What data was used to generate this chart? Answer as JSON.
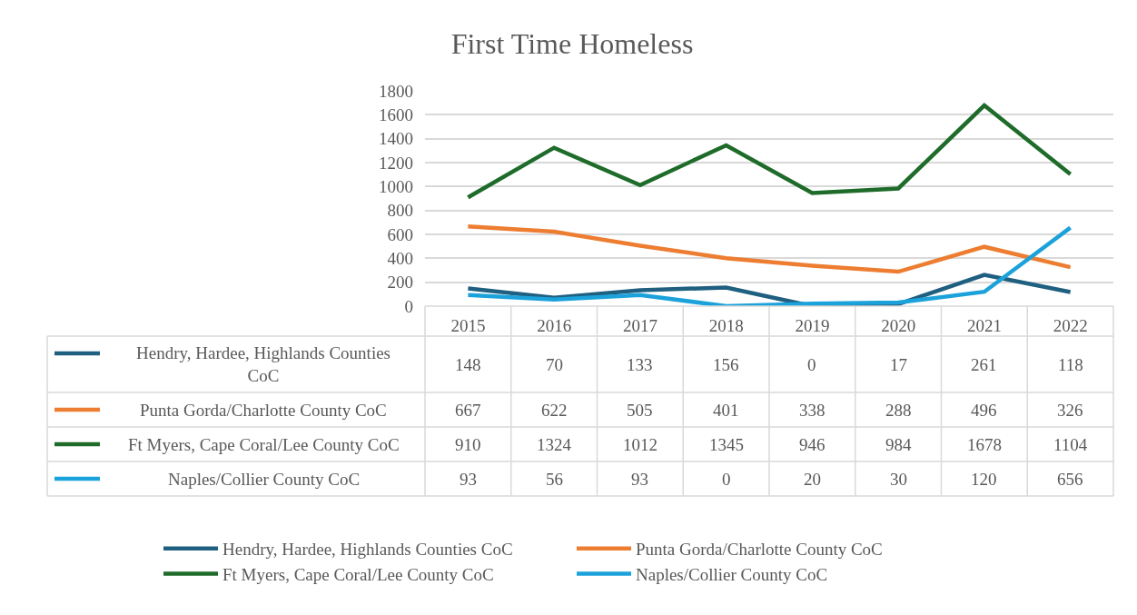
{
  "chart_data": {
    "type": "line",
    "title": "First Time Homeless",
    "categories": [
      "2015",
      "2016",
      "2017",
      "2018",
      "2019",
      "2020",
      "2021",
      "2022"
    ],
    "series": [
      {
        "name": "Hendry, Hardee, Highlands Counties CoC",
        "color": "#1f5f80",
        "values": [
          148,
          70,
          133,
          156,
          0,
          17,
          261,
          118
        ]
      },
      {
        "name": "Punta Gorda/Charlotte County CoC",
        "color": "#ed7d31",
        "values": [
          667,
          622,
          505,
          401,
          338,
          288,
          496,
          326
        ]
      },
      {
        "name": "Ft Myers, Cape Coral/Lee County CoC",
        "color": "#1e6b2a",
        "values": [
          910,
          1324,
          1012,
          1345,
          946,
          984,
          1678,
          1104
        ]
      },
      {
        "name": "Naples/Collier County CoC",
        "color": "#1ca2da",
        "values": [
          93,
          56,
          93,
          0,
          20,
          30,
          120,
          656
        ]
      }
    ],
    "ylim": [
      0,
      1800
    ],
    "yticks": [
      0,
      200,
      400,
      600,
      800,
      1000,
      1200,
      1400,
      1600,
      1800
    ],
    "grid": "y",
    "legend": "bottom",
    "data_labels": true,
    "marker": "none",
    "line_style": "solid"
  }
}
